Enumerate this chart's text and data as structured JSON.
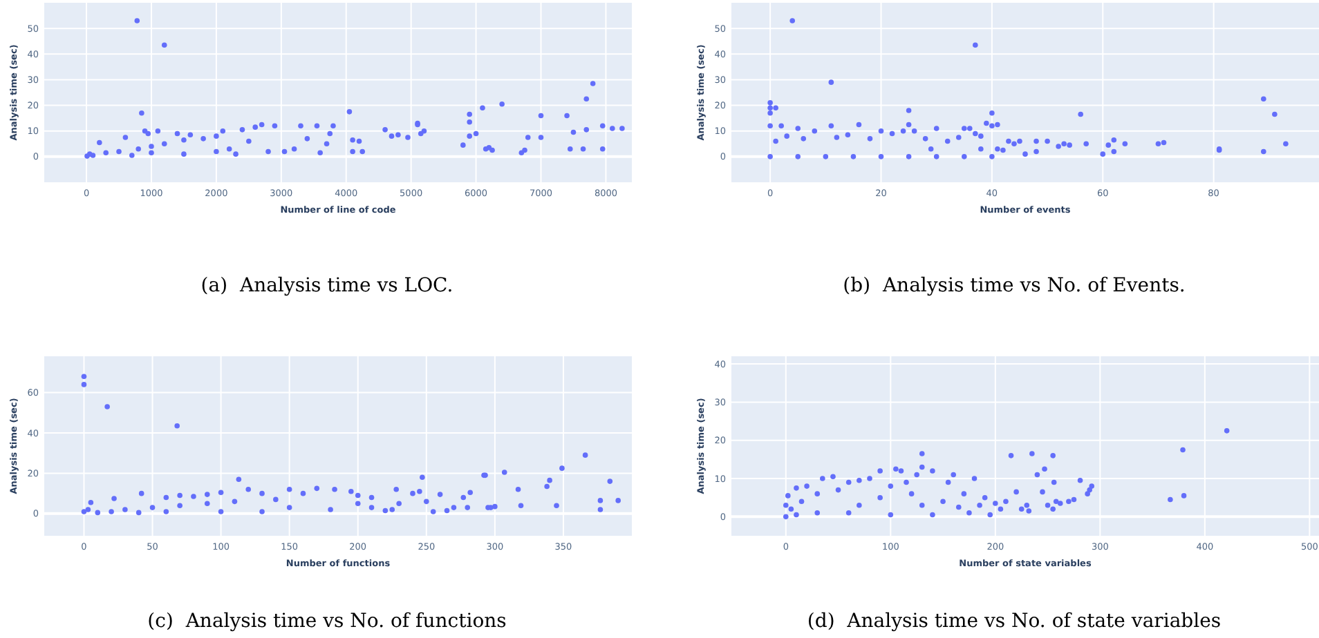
{
  "chart_data": [
    {
      "type": "scatter",
      "xlabel": "Number of line of code",
      "ylabel": "Analysis time (sec)",
      "annotations": [
        "(a)  Analysis time vs LOC."
      ],
      "color": "#636efa",
      "marker": "circle",
      "grid": true,
      "xlim": [
        -650,
        8400
      ],
      "ylim": [
        -10,
        60
      ],
      "xticks": [
        0,
        1000,
        2000,
        3000,
        4000,
        5000,
        6000,
        7000,
        8000
      ],
      "yticks": [
        0,
        10,
        20,
        30,
        40,
        50
      ],
      "x": [
        780,
        1200,
        850,
        900,
        950,
        4050,
        5900,
        5900,
        6100,
        6400,
        7000,
        7400,
        7700,
        7800,
        7950,
        8100,
        8250,
        7950,
        7450,
        7650,
        7500,
        7700,
        6700,
        6750,
        6800,
        7000,
        6150,
        6200,
        6250,
        5800,
        5900,
        6000,
        5100,
        5100,
        5150,
        5200,
        4950,
        4800,
        4600,
        4700,
        4100,
        4200,
        4100,
        4250,
        3800,
        3750,
        3700,
        3550,
        3300,
        3200,
        3050,
        2900,
        2700,
        2600,
        2400,
        2100,
        2000,
        2200,
        2300,
        1800,
        1500,
        1200,
        1000,
        800,
        500,
        300,
        100,
        50,
        10,
        200,
        600,
        1100,
        1400,
        1600,
        2500,
        2800,
        3400,
        3600,
        2000,
        1500,
        1000,
        700
      ],
      "values": [
        53,
        43.5,
        17,
        10,
        9,
        17.5,
        16.5,
        13.5,
        19,
        20.5,
        16,
        16,
        22.5,
        28.5,
        12,
        11,
        11,
        3,
        3,
        3,
        9.5,
        10.5,
        1.5,
        2.5,
        7.5,
        7.5,
        3,
        3.5,
        2.5,
        4.5,
        8,
        9,
        13,
        12.5,
        9,
        10,
        7.5,
        8.5,
        10.5,
        8,
        6.5,
        6,
        2,
        2,
        12,
        9,
        5,
        12,
        12,
        3,
        2,
        12,
        12.5,
        11.5,
        10.5,
        10,
        8,
        3,
        1,
        7,
        6.5,
        5,
        4,
        3,
        2,
        1.5,
        0.5,
        1,
        0.2,
        5.5,
        7.5,
        10,
        9,
        8.5,
        6,
        2,
        7,
        1.5,
        2,
        1,
        1.5,
        0.5
      ]
    },
    {
      "type": "scatter",
      "xlabel": "Number of events",
      "ylabel": "Analysis time (sec)",
      "annotations": [
        "(b)  Analysis time vs No. of Events."
      ],
      "color": "#636efa",
      "marker": "circle",
      "grid": true,
      "xlim": [
        -7,
        99
      ],
      "ylim": [
        -10,
        60
      ],
      "xticks": [
        0,
        20,
        40,
        60,
        80
      ],
      "yticks": [
        0,
        10,
        20,
        30,
        40,
        50
      ],
      "x": [
        4,
        37,
        11,
        0,
        0,
        0,
        1,
        25,
        40,
        56,
        89,
        91,
        89,
        93,
        81,
        81,
        70,
        71,
        64,
        62,
        62,
        61,
        60,
        57,
        54,
        53,
        52,
        50,
        48,
        48,
        46,
        45,
        44,
        43,
        42,
        41,
        38,
        40,
        39,
        38,
        37,
        36,
        35,
        30,
        26,
        25,
        24,
        22,
        20,
        16,
        11,
        8,
        5,
        3,
        2,
        0,
        0,
        10,
        20,
        30,
        40,
        5,
        15,
        25,
        35,
        1,
        6,
        12,
        14,
        18,
        28,
        32,
        34,
        41,
        29
      ],
      "values": [
        53,
        43.5,
        29,
        21,
        19,
        17,
        19,
        18,
        17,
        16.5,
        22.5,
        16.5,
        2,
        5,
        2.5,
        3,
        5,
        5.5,
        5,
        6.5,
        2,
        4.5,
        1,
        5,
        4.5,
        5,
        4,
        6,
        6,
        2,
        1,
        6,
        5,
        6,
        2.5,
        3,
        3,
        12,
        13,
        8,
        9,
        11,
        11,
        11,
        10,
        12.5,
        10,
        9,
        10,
        12.5,
        12,
        10,
        11,
        8,
        12,
        12,
        0,
        0,
        0,
        0,
        0,
        0,
        0,
        0,
        0,
        6,
        7,
        7.5,
        8.5,
        7,
        7,
        6,
        7.5,
        12.5,
        3
      ]
    },
    {
      "type": "scatter",
      "xlabel": "Number of functions",
      "ylabel": "Analysis time (sec)",
      "annotations": [
        "(c)  Analysis time vs No. of functions"
      ],
      "color": "#636efa",
      "marker": "circle",
      "grid": true,
      "xlim": [
        -29,
        400
      ],
      "ylim": [
        -11,
        78
      ],
      "xticks": [
        0,
        50,
        100,
        150,
        200,
        250,
        300,
        350
      ],
      "yticks": [
        0,
        20,
        40,
        60
      ],
      "x": [
        0,
        0,
        17,
        68,
        113,
        247,
        292,
        293,
        307,
        317,
        319,
        338,
        340,
        345,
        349,
        366,
        377,
        377,
        384,
        390,
        300,
        297,
        295,
        282,
        277,
        270,
        260,
        255,
        245,
        240,
        228,
        230,
        220,
        210,
        200,
        195,
        183,
        170,
        160,
        150,
        140,
        130,
        120,
        100,
        90,
        80,
        70,
        60,
        42,
        22,
        5,
        0,
        10,
        30,
        50,
        70,
        90,
        110,
        130,
        150,
        180,
        200,
        210,
        225,
        250,
        265,
        280,
        3,
        20,
        40,
        60,
        100
      ],
      "values": [
        68,
        64,
        53,
        43.5,
        17,
        18,
        19,
        19,
        20.5,
        12,
        4,
        13.5,
        16.5,
        4,
        22.5,
        29,
        6.5,
        2,
        16,
        6.5,
        3.5,
        3,
        3,
        10.5,
        8,
        3,
        9.5,
        1,
        11,
        10,
        12,
        5,
        1.5,
        8,
        9,
        11,
        12,
        12.5,
        10,
        12,
        7,
        10,
        12,
        10.5,
        9.5,
        8.5,
        9,
        8,
        10,
        7.5,
        5.5,
        1,
        0.5,
        2,
        3,
        4,
        5,
        6,
        1,
        3,
        2,
        5,
        3,
        2,
        6,
        1.5,
        3,
        2,
        1,
        0.5,
        1,
        1
      ]
    },
    {
      "type": "scatter",
      "xlabel": "Number of state variables",
      "ylabel": "Analysis time (sec)",
      "annotations": [
        "(d)  Analysis time vs No. of state variables"
      ],
      "color": "#636efa",
      "marker": "circle",
      "grid": true,
      "xlim": [
        -52,
        509
      ],
      "ylim": [
        -5,
        42
      ],
      "xticks": [
        0,
        100,
        200,
        300,
        400,
        500
      ],
      "yticks": [
        0,
        10,
        20,
        30,
        40
      ],
      "x": [
        421,
        379,
        380,
        367,
        292,
        290,
        281,
        288,
        235,
        215,
        255,
        247,
        240,
        256,
        245,
        250,
        255,
        258,
        262,
        270,
        275,
        230,
        232,
        225,
        220,
        210,
        205,
        200,
        190,
        180,
        170,
        160,
        155,
        140,
        130,
        130,
        125,
        115,
        105,
        110,
        90,
        100,
        80,
        70,
        60,
        45,
        35,
        20,
        10,
        2,
        0,
        0,
        5,
        15,
        30,
        50,
        70,
        90,
        120,
        150,
        175,
        185,
        195,
        140,
        100,
        60,
        30,
        10,
        165,
        130
      ],
      "values": [
        22.5,
        17.5,
        5.5,
        4.5,
        8,
        7,
        9.5,
        6,
        16.5,
        16,
        16,
        12.5,
        11,
        9,
        6.5,
        3,
        2,
        4,
        3.5,
        4,
        4.5,
        3,
        1.5,
        2,
        6.5,
        4,
        2,
        3.5,
        5,
        10,
        6,
        11,
        9,
        12,
        16.5,
        13,
        11,
        9,
        12.5,
        12,
        12,
        8,
        10,
        9.5,
        9,
        10.5,
        10,
        8,
        7.5,
        5.5,
        3,
        0,
        2,
        4,
        6,
        7,
        3,
        5,
        6,
        4,
        1,
        3,
        0.5,
        0.5,
        0.5,
        1,
        1,
        0.5,
        2.5,
        3
      ]
    }
  ]
}
